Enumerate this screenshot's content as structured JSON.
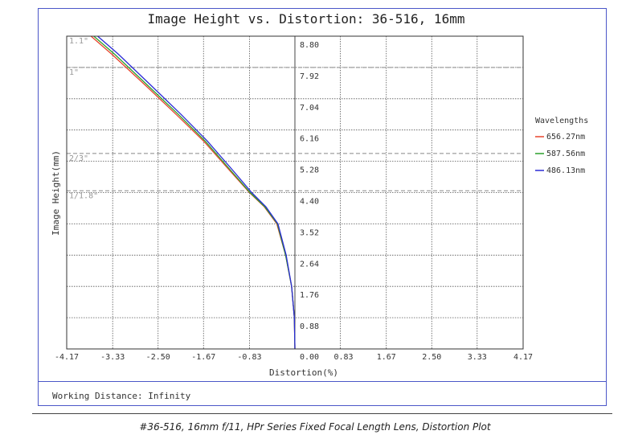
{
  "chart_data": {
    "type": "line",
    "title": "Image Height vs. Distortion: 36-516, 16mm",
    "xlabel": "Distortion(%)",
    "ylabel": "Image Height(mm)",
    "xlim": [
      -4.17,
      4.17
    ],
    "ylim": [
      0,
      8.8
    ],
    "x_ticks": [
      "-4.17",
      "-3.33",
      "-2.50",
      "-1.67",
      "-0.83",
      "0.00",
      "0.83",
      "1.67",
      "2.50",
      "3.33",
      "4.17"
    ],
    "y_ticks": [
      "0.88",
      "1.76",
      "2.64",
      "3.52",
      "4.40",
      "5.28",
      "6.16",
      "7.04",
      "7.92",
      "8.80"
    ],
    "sensor_lines": [
      {
        "label": "1.1\"",
        "y": 8.8
      },
      {
        "label": "1\"",
        "y": 7.92
      },
      {
        "label": "2/3\"",
        "y": 5.5
      },
      {
        "label": "1/1.8\"",
        "y": 4.45
      }
    ],
    "legend_title": "Wavelengths",
    "legend_position": "right",
    "grid": true,
    "series": [
      {
        "name": "656.27nm",
        "color": "#e8442c",
        "x": [
          0,
          -0.01,
          -0.06,
          -0.17,
          -0.33,
          -0.56,
          -0.83,
          -1.18,
          -1.67,
          -2.17,
          -2.72,
          -3.35,
          -3.8
        ],
        "y": [
          0,
          0.88,
          1.76,
          2.64,
          3.52,
          4.0,
          4.4,
          5.0,
          5.85,
          6.6,
          7.4,
          8.3,
          8.9
        ]
      },
      {
        "name": "587.56nm",
        "color": "#2ca02c",
        "x": [
          0,
          -0.01,
          -0.06,
          -0.17,
          -0.32,
          -0.55,
          -0.82,
          -1.16,
          -1.64,
          -2.13,
          -2.68,
          -3.3,
          -3.75
        ],
        "y": [
          0,
          0.88,
          1.76,
          2.64,
          3.52,
          4.0,
          4.4,
          5.0,
          5.85,
          6.6,
          7.4,
          8.3,
          8.9
        ]
      },
      {
        "name": "486.13nm",
        "color": "#2b2bd6",
        "x": [
          0,
          -0.01,
          -0.06,
          -0.16,
          -0.31,
          -0.53,
          -0.79,
          -1.12,
          -1.6,
          -2.08,
          -2.62,
          -3.23,
          -3.68
        ],
        "y": [
          0,
          0.88,
          1.76,
          2.64,
          3.52,
          4.0,
          4.4,
          5.0,
          5.85,
          6.6,
          7.4,
          8.3,
          8.9
        ]
      }
    ]
  },
  "footer": {
    "working_distance": "Working Distance: Infinity",
    "caption": "#36-516, 16mm f/11, HPr Series Fixed Focal Length Lens, Distortion Plot"
  }
}
